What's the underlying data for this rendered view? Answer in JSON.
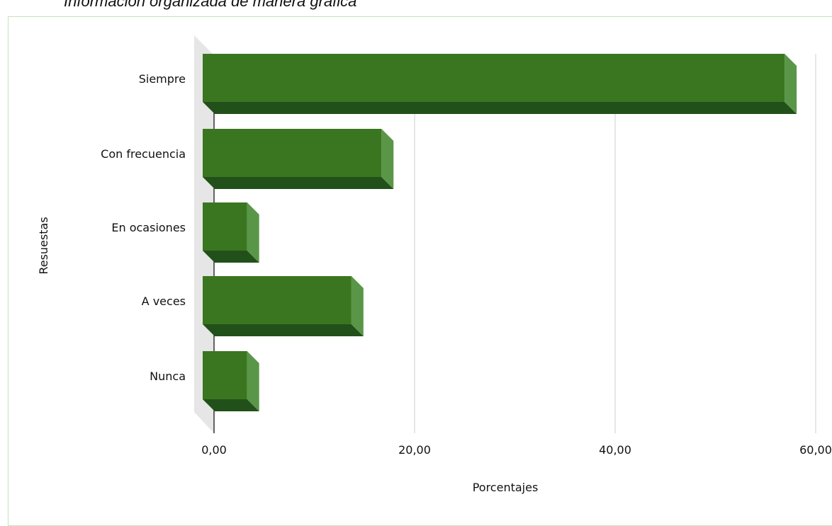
{
  "caption": "Información organizada de manera gráfica",
  "chart_data": {
    "type": "bar",
    "orientation": "horizontal",
    "categories": [
      "Siempre",
      "Con frecuencia",
      "En ocasiones",
      "A veces",
      "Nunca"
    ],
    "values": [
      58.1,
      17.9,
      4.5,
      14.9,
      4.5
    ],
    "xlabel": "Porcentajes",
    "ylabel": "Resuestas",
    "xticks": [
      "0,00",
      "20,00",
      "40,00",
      "60,00"
    ],
    "xtick_values": [
      0,
      20,
      40,
      60
    ],
    "xlim": [
      0,
      60
    ],
    "grid": "vertical",
    "legend": "none",
    "colors": {
      "bar_front": "#3a761f",
      "bar_side": "#5a9648",
      "bar_bottom": "#22501a",
      "gridline": "#cccccc",
      "wall": "#e6e6e6",
      "frame_border": "#c9e1bd"
    }
  }
}
